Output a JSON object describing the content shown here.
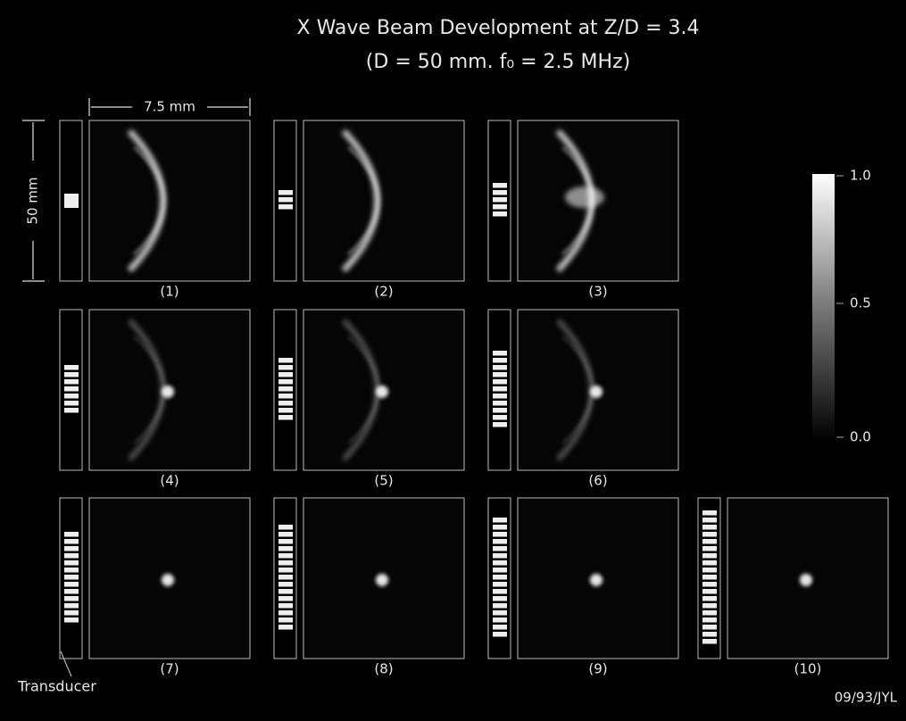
{
  "header": {
    "title": "X Wave Beam Development at Z/D = 3.4",
    "subtitle": "(D = 50 mm. f₀ = 2.5 MHz)"
  },
  "scales": {
    "width": "7.5 mm",
    "height": "50 mm"
  },
  "panels": [
    "(1)",
    "(2)",
    "(3)",
    "(4)",
    "(5)",
    "(6)",
    "(7)",
    "(8)",
    "(9)",
    "(10)"
  ],
  "colorbar": {
    "ticks": [
      "1.0",
      "0.5",
      "0.0"
    ]
  },
  "transducer_label": "Transducer",
  "stamp": "09/93/JYL"
}
